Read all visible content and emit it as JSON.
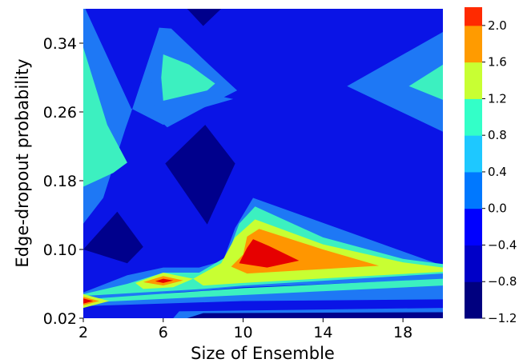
{
  "chart_data": {
    "type": "contour",
    "xlabel": "Size of Ensemble",
    "ylabel": "Edge-dropout probability",
    "xlim": [
      2,
      20
    ],
    "ylim": [
      0.02,
      0.38
    ],
    "x_ticks": [
      2,
      6,
      10,
      14,
      18
    ],
    "x_tick_labels": [
      "2",
      "6",
      "10",
      "14",
      "18"
    ],
    "y_ticks": [
      0.02,
      0.1,
      0.18,
      0.26,
      0.34
    ],
    "y_tick_labels": [
      "0.02",
      "0.10",
      "0.18",
      "0.26",
      "0.34"
    ],
    "levels": [
      -1.2,
      -0.8,
      -0.4,
      0.0,
      0.4,
      0.8,
      1.2,
      1.6,
      2.0,
      2.2
    ],
    "colorbar_tick_labels": [
      "−1.2",
      "−0.8",
      "−0.4",
      "0.0",
      "0.4",
      "0.8",
      "1.2",
      "1.6",
      "2.0"
    ],
    "level_colors": [
      "#00007f",
      "#0000c8",
      "#0000ff",
      "#0078ff",
      "#1ec8ff",
      "#33ffc8",
      "#c8ff33",
      "#ff9b00",
      "#ff2a00",
      "#d40000"
    ],
    "regions": [
      {
        "name": "background",
        "level_index": 2,
        "color": "#0a14e6"
      },
      {
        "name": "left-band-light",
        "level_index": 4,
        "color": "#1e78f5"
      },
      {
        "name": "left-cyan-lobe",
        "level_index": 5,
        "color": "#3cf0c0"
      },
      {
        "name": "upper-middle-light",
        "level_index": 4,
        "color": "#1e78f5"
      },
      {
        "name": "upper-middle-cyan",
        "level_index": 5,
        "color": "#3cf0c0"
      },
      {
        "name": "upper-right-light",
        "level_index": 4,
        "color": "#1e78f5"
      },
      {
        "name": "upper-right-cyan",
        "level_index": 5,
        "color": "#3cf0c0"
      },
      {
        "name": "top-dark-notch",
        "level_index": 1,
        "color": "#00008c"
      },
      {
        "name": "middle-dark-diamond",
        "level_index": 1,
        "color": "#00008c"
      },
      {
        "name": "left-dark-triangle",
        "level_index": 1,
        "color": "#00008c"
      },
      {
        "name": "peak-light",
        "level_index": 4,
        "color": "#1e78f5"
      },
      {
        "name": "peak-cyan",
        "level_index": 5,
        "color": "#3cf0c0"
      },
      {
        "name": "peak-yellow",
        "level_index": 6,
        "color": "#c8ff32"
      },
      {
        "name": "peak-orange",
        "level_index": 7,
        "color": "#ff9600"
      },
      {
        "name": "peak-red",
        "level_index": 8,
        "color": "#e60000"
      },
      {
        "name": "lower-light-band",
        "level_index": 4,
        "color": "#1e78f5"
      },
      {
        "name": "lower-cyan-band",
        "level_index": 5,
        "color": "#3cf0c0"
      },
      {
        "name": "lower-yellow-band",
        "level_index": 6,
        "color": "#c8ff32"
      },
      {
        "name": "x6-yellow",
        "level_index": 6,
        "color": "#c8ff32"
      },
      {
        "name": "x6-orange",
        "level_index": 7,
        "color": "#ff9600"
      },
      {
        "name": "x6-red",
        "level_index": 8,
        "color": "#e60000"
      },
      {
        "name": "x2-yellow",
        "level_index": 6,
        "color": "#c8ff32"
      },
      {
        "name": "x2-orange",
        "level_index": 7,
        "color": "#ff9600"
      },
      {
        "name": "x2-red",
        "level_index": 8,
        "color": "#e60000"
      },
      {
        "name": "bottom-light-strip",
        "level_index": 4,
        "color": "#1e78f5"
      },
      {
        "name": "bottom-dark-strip",
        "level_index": 1,
        "color": "#00008c"
      }
    ]
  }
}
